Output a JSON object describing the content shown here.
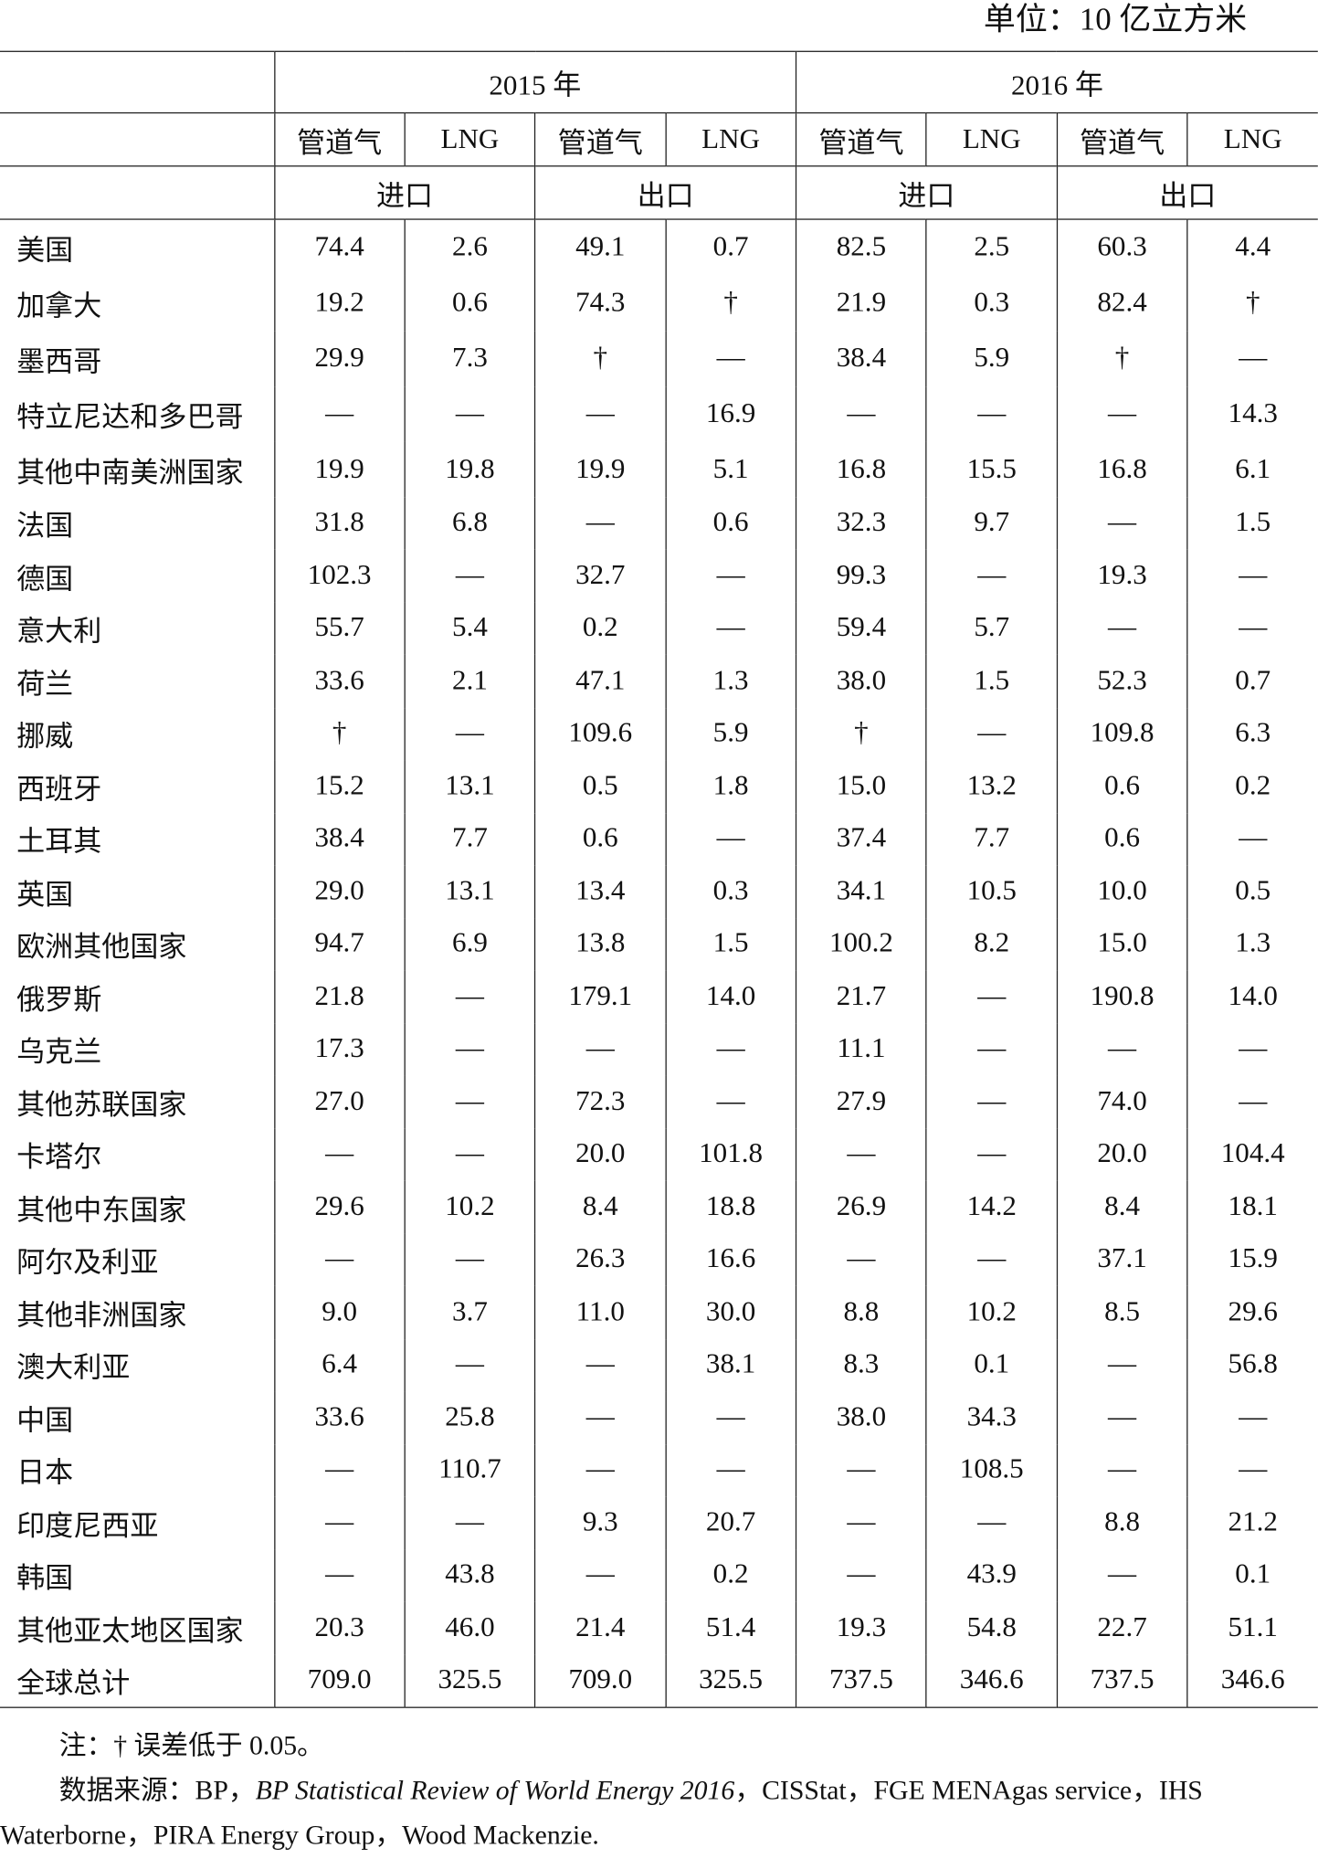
{
  "unit": "单位：10 亿立方米",
  "header": {
    "years": [
      "2015 年",
      "2016 年"
    ],
    "types": [
      "管道气",
      "LNG",
      "管道气",
      "LNG",
      "管道气",
      "LNG",
      "管道气",
      "LNG"
    ],
    "flows": [
      "进口",
      "出口",
      "进口",
      "出口"
    ]
  },
  "table": {
    "rows": [
      {
        "name": "美国",
        "values": [
          "74.4",
          "2.6",
          "49.1",
          "0.7",
          "82.5",
          "2.5",
          "60.3",
          "4.4"
        ]
      },
      {
        "name": "加拿大",
        "values": [
          "19.2",
          "0.6",
          "74.3",
          "†",
          "21.9",
          "0.3",
          "82.4",
          "†"
        ]
      },
      {
        "name": "墨西哥",
        "values": [
          "29.9",
          "7.3",
          "†",
          "—",
          "38.4",
          "5.9",
          "†",
          "—"
        ]
      },
      {
        "name": "特立尼达和多巴哥",
        "values": [
          "—",
          "—",
          "—",
          "16.9",
          "—",
          "—",
          "—",
          "14.3"
        ]
      },
      {
        "name": "其他中南美洲国家",
        "values": [
          "19.9",
          "19.8",
          "19.9",
          "5.1",
          "16.8",
          "15.5",
          "16.8",
          "6.1"
        ]
      },
      {
        "name": "法国",
        "values": [
          "31.8",
          "6.8",
          "—",
          "0.6",
          "32.3",
          "9.7",
          "—",
          "1.5"
        ]
      },
      {
        "name": "德国",
        "values": [
          "102.3",
          "—",
          "32.7",
          "—",
          "99.3",
          "—",
          "19.3",
          "—"
        ]
      },
      {
        "name": "意大利",
        "values": [
          "55.7",
          "5.4",
          "0.2",
          "—",
          "59.4",
          "5.7",
          "—",
          "—"
        ]
      },
      {
        "name": "荷兰",
        "values": [
          "33.6",
          "2.1",
          "47.1",
          "1.3",
          "38.0",
          "1.5",
          "52.3",
          "0.7"
        ]
      },
      {
        "name": "挪威",
        "values": [
          "†",
          "—",
          "109.6",
          "5.9",
          "†",
          "—",
          "109.8",
          "6.3"
        ]
      },
      {
        "name": "西班牙",
        "values": [
          "15.2",
          "13.1",
          "0.5",
          "1.8",
          "15.0",
          "13.2",
          "0.6",
          "0.2"
        ]
      },
      {
        "name": "土耳其",
        "values": [
          "38.4",
          "7.7",
          "0.6",
          "—",
          "37.4",
          "7.7",
          "0.6",
          "—"
        ]
      },
      {
        "name": "英国",
        "values": [
          "29.0",
          "13.1",
          "13.4",
          "0.3",
          "34.1",
          "10.5",
          "10.0",
          "0.5"
        ]
      },
      {
        "name": "欧洲其他国家",
        "values": [
          "94.7",
          "6.9",
          "13.8",
          "1.5",
          "100.2",
          "8.2",
          "15.0",
          "1.3"
        ]
      },
      {
        "name": "俄罗斯",
        "values": [
          "21.8",
          "—",
          "179.1",
          "14.0",
          "21.7",
          "—",
          "190.8",
          "14.0"
        ]
      },
      {
        "name": "乌克兰",
        "values": [
          "17.3",
          "—",
          "—",
          "—",
          "11.1",
          "—",
          "—",
          "—"
        ]
      },
      {
        "name": "其他苏联国家",
        "values": [
          "27.0",
          "—",
          "72.3",
          "—",
          "27.9",
          "—",
          "74.0",
          "—"
        ]
      },
      {
        "name": "卡塔尔",
        "values": [
          "—",
          "—",
          "20.0",
          "101.8",
          "—",
          "—",
          "20.0",
          "104.4"
        ]
      },
      {
        "name": "其他中东国家",
        "values": [
          "29.6",
          "10.2",
          "8.4",
          "18.8",
          "26.9",
          "14.2",
          "8.4",
          "18.1"
        ]
      },
      {
        "name": "阿尔及利亚",
        "values": [
          "—",
          "—",
          "26.3",
          "16.6",
          "—",
          "—",
          "37.1",
          "15.9"
        ]
      },
      {
        "name": "其他非洲国家",
        "values": [
          "9.0",
          "3.7",
          "11.0",
          "30.0",
          "8.8",
          "10.2",
          "8.5",
          "29.6"
        ]
      },
      {
        "name": "澳大利亚",
        "values": [
          "6.4",
          "—",
          "—",
          "38.1",
          "8.3",
          "0.1",
          "—",
          "56.8"
        ]
      },
      {
        "name": "中国",
        "values": [
          "33.6",
          "25.8",
          "—",
          "—",
          "38.0",
          "34.3",
          "—",
          "—"
        ]
      },
      {
        "name": "日本",
        "values": [
          "—",
          "110.7",
          "—",
          "—",
          "—",
          "108.5",
          "—",
          "—"
        ]
      },
      {
        "name": "印度尼西亚",
        "values": [
          "—",
          "—",
          "9.3",
          "20.7",
          "—",
          "—",
          "8.8",
          "21.2"
        ]
      },
      {
        "name": "韩国",
        "values": [
          "—",
          "43.8",
          "—",
          "0.2",
          "—",
          "43.9",
          "—",
          "0.1"
        ]
      },
      {
        "name": "其他亚太地区国家",
        "values": [
          "20.3",
          "46.0",
          "21.4",
          "51.4",
          "19.3",
          "54.8",
          "22.7",
          "51.1"
        ]
      },
      {
        "name": "全球总计",
        "values": [
          "709.0",
          "325.5",
          "709.0",
          "325.5",
          "737.5",
          "346.6",
          "737.5",
          "346.6"
        ]
      }
    ]
  },
  "notes": {
    "note": "注：† 误差低于 0.05。",
    "source_prefix": "数据来源：BP，",
    "source_title": "BP Statistical Review of World Energy 2016",
    "source_rest": "，CISStat，FGE MENAgas service，IHS Waterborne，PIRA Energy Group，Wood Mackenzie."
  }
}
